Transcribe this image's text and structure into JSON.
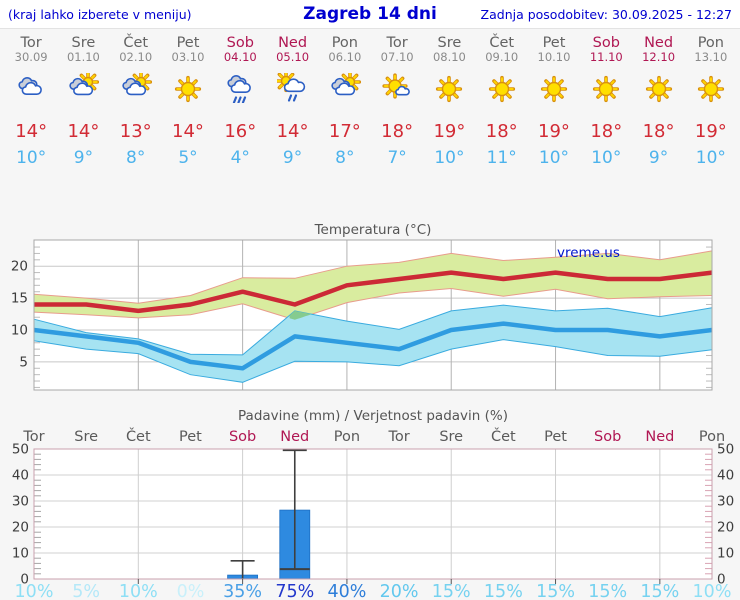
{
  "header": {
    "left": "(kraj lahko izberete v meniju)",
    "title": "Zagreb 14 dni",
    "right": "Zadnja posodobitev: 30.09.2025 - 12:27"
  },
  "degree_symbol": "°",
  "watermark": "vreme.us",
  "colors": {
    "header_blue": "#0000d0",
    "weekend": "#b01753",
    "day_gray": "#636363",
    "high_red": "#d22b35",
    "low_blue": "#4db3ec"
  },
  "days": [
    {
      "name": "Tor",
      "date": "30.09",
      "weekend": false,
      "icon": "cloudy",
      "high": "14",
      "low": "10"
    },
    {
      "name": "Sre",
      "date": "01.10",
      "weekend": false,
      "icon": "sun-clouds",
      "high": "14",
      "low": "9"
    },
    {
      "name": "Čet",
      "date": "02.10",
      "weekend": false,
      "icon": "sun-clouds",
      "high": "13",
      "low": "8"
    },
    {
      "name": "Pet",
      "date": "03.10",
      "weekend": false,
      "icon": "sunny",
      "high": "14",
      "low": "5"
    },
    {
      "name": "Sob",
      "date": "04.10",
      "weekend": true,
      "icon": "rain",
      "high": "16",
      "low": "4"
    },
    {
      "name": "Ned",
      "date": "05.10",
      "weekend": true,
      "icon": "sun-rain",
      "high": "14",
      "low": "9"
    },
    {
      "name": "Pon",
      "date": "06.10",
      "weekend": false,
      "icon": "sun-clouds",
      "high": "17",
      "low": "8"
    },
    {
      "name": "Tor",
      "date": "07.10",
      "weekend": false,
      "icon": "sun-small-cloud",
      "high": "18",
      "low": "7"
    },
    {
      "name": "Sre",
      "date": "08.10",
      "weekend": false,
      "icon": "sunny",
      "high": "19",
      "low": "10"
    },
    {
      "name": "Čet",
      "date": "09.10",
      "weekend": false,
      "icon": "sunny",
      "high": "18",
      "low": "11"
    },
    {
      "name": "Pet",
      "date": "10.10",
      "weekend": false,
      "icon": "sunny",
      "high": "19",
      "low": "10"
    },
    {
      "name": "Sob",
      "date": "11.10",
      "weekend": true,
      "icon": "sunny",
      "high": "18",
      "low": "10"
    },
    {
      "name": "Ned",
      "date": "12.10",
      "weekend": true,
      "icon": "sunny",
      "high": "18",
      "low": "9"
    },
    {
      "name": "Pon",
      "date": "13.10",
      "weekend": false,
      "icon": "sunny",
      "high": "19",
      "low": "10"
    }
  ],
  "chart_data": [
    {
      "type": "line",
      "title": "Temperatura (°C)",
      "ylabel": "°C",
      "yticks": [
        5,
        10,
        15,
        20
      ],
      "ylim": [
        0.6,
        24.3
      ],
      "grid_day_indices": [
        2,
        4,
        6,
        8,
        10,
        12
      ],
      "legend_position": "none",
      "series": [
        {
          "name": "temp-max",
          "color": "#cc2936",
          "values": [
            14,
            14,
            13,
            14,
            16,
            14,
            17,
            18,
            19,
            18,
            19,
            18,
            18,
            19
          ]
        },
        {
          "name": "temp-min",
          "color": "#2f9ce0",
          "values": [
            10,
            9,
            8,
            5,
            4,
            9,
            8,
            7,
            10,
            11,
            10,
            10,
            9,
            10
          ]
        }
      ],
      "bands": [
        {
          "name": "max-range",
          "fill": "#d9ec9f",
          "edge": "#e89c8c",
          "upper": [
            15.6,
            15.0,
            14.2,
            15.4,
            18.2,
            18.1,
            20.0,
            20.6,
            22.0,
            20.9,
            21.4,
            22.0,
            21.0,
            22.4
          ],
          "lower": [
            12.8,
            12.4,
            11.9,
            12.4,
            14.1,
            11.6,
            14.3,
            15.8,
            16.5,
            15.3,
            16.4,
            14.9,
            15.2,
            15.4
          ]
        },
        {
          "name": "min-range",
          "fill": "#a6e3f2",
          "edge": "#3aabdf",
          "upper": [
            11.7,
            9.6,
            8.6,
            6.2,
            6.1,
            13.0,
            11.4,
            10.1,
            13.0,
            13.9,
            13.0,
            13.4,
            12.1,
            13.5
          ],
          "lower": [
            8.3,
            7.0,
            6.3,
            3.0,
            1.8,
            5.1,
            5.0,
            4.4,
            7.0,
            8.5,
            7.4,
            6.0,
            5.9,
            6.9
          ]
        }
      ],
      "overlap_color": "#85cb8f"
    },
    {
      "type": "bar",
      "title": "Padavine (mm) / Verjetnost padavin (%)",
      "categories": [
        "Tor",
        "Sre",
        "Čet",
        "Pet",
        "Sob",
        "Ned",
        "Pon",
        "Tor",
        "Sre",
        "Čet",
        "Pet",
        "Sob",
        "Ned",
        "Pon"
      ],
      "weekend": [
        false,
        false,
        false,
        false,
        true,
        true,
        false,
        false,
        false,
        false,
        false,
        true,
        true,
        false
      ],
      "yticks": [
        0,
        10,
        20,
        30,
        40,
        50
      ],
      "ylim": [
        0,
        50
      ],
      "values_mm": [
        0,
        0,
        0,
        0,
        1.5,
        26.5,
        0,
        0,
        0,
        0,
        0,
        0,
        0,
        0
      ],
      "whisker_high_mm": [
        null,
        null,
        null,
        null,
        7,
        49.5,
        null,
        null,
        null,
        null,
        null,
        null,
        null,
        null
      ],
      "whisker_low_mm": [
        null,
        null,
        null,
        null,
        0,
        3.8,
        null,
        null,
        null,
        null,
        null,
        null,
        null,
        null
      ],
      "probability_labels": [
        "10%",
        "5%",
        "10%",
        "0%",
        "35%",
        "75%",
        "40%",
        "20%",
        "15%",
        "15%",
        "15%",
        "15%",
        "15%",
        "10%"
      ],
      "probability_colors": [
        "#8edff5",
        "#b4e8f8",
        "#8edff5",
        "#c9f0fa",
        "#4aa0e6",
        "#2338cc",
        "#2e7ed9",
        "#62c8ee",
        "#76d2f0",
        "#76d2f0",
        "#76d2f0",
        "#76d2f0",
        "#76d2f0",
        "#8edff5"
      ],
      "bar_color": "#2e8ae0",
      "whisker_color": "#3f3f3f"
    }
  ]
}
